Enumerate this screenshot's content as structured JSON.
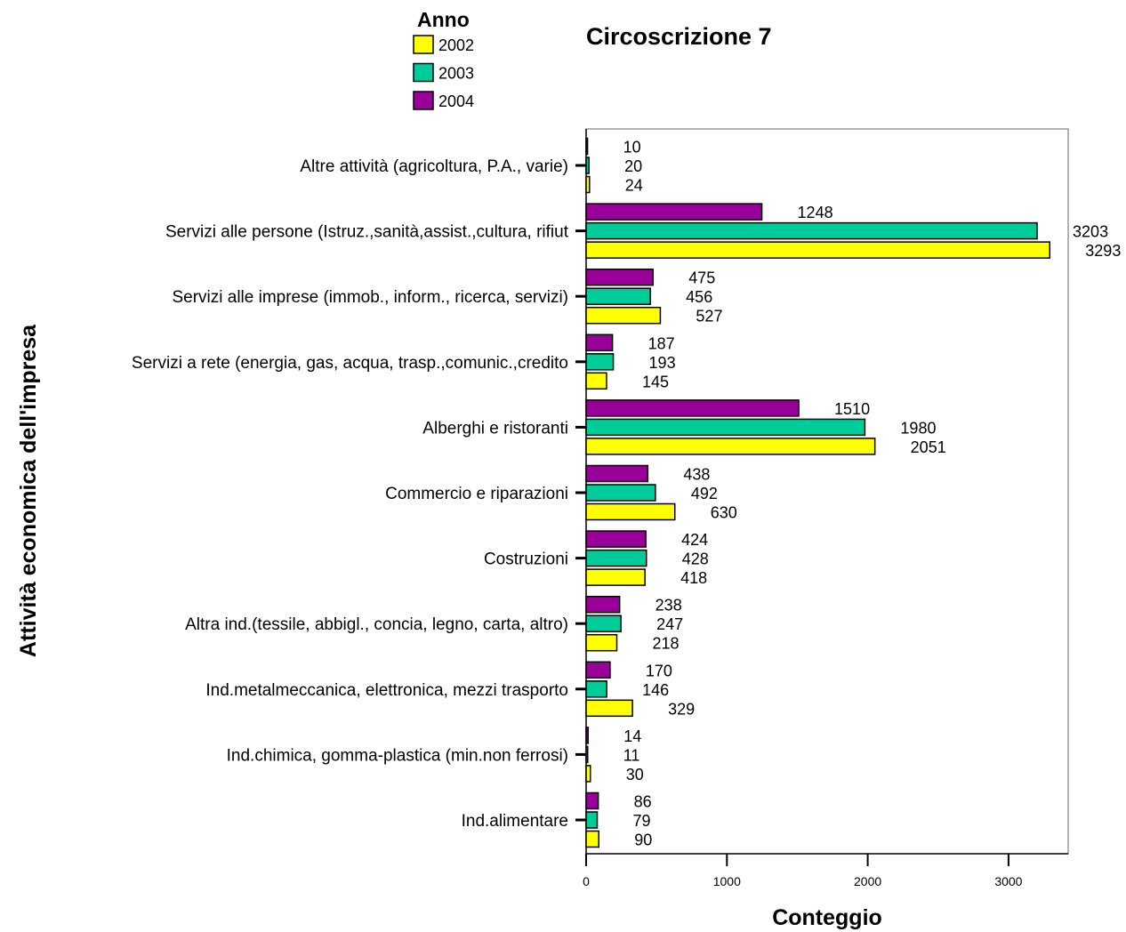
{
  "chart_data": {
    "type": "bar",
    "orientation": "horizontal",
    "title": "Circoscrizione 7",
    "xlabel": "Conteggio",
    "ylabel": "Attività economica dell'impresa",
    "xlim": [
      0,
      3400
    ],
    "xticks": [
      0,
      1000,
      2000,
      3000
    ],
    "legend": {
      "title": "Anno",
      "position": "top-left"
    },
    "categories": [
      "Altre attività  (agricoltura, P.A., varie)",
      "Servizi alle persone (Istruz.,sanità,assist.,cultura, rifiut",
      "Servizi alle imprese (immob., inform., ricerca, servizi)",
      "Servizi a rete (energia, gas, acqua, trasp.,comunic.,credito",
      "Alberghi e ristoranti",
      "Commercio e riparazioni",
      "Costruzioni",
      "Altra ind.(tessile, abbigl., concia, legno, carta, altro)",
      "Ind.metalmeccanica, elettronica, mezzi trasporto",
      "Ind.chimica, gomma-plastica (min.non ferrosi)",
      "Ind.alimentare"
    ],
    "series": [
      {
        "name": "2004",
        "color": "#990099",
        "values": [
          10,
          1248,
          475,
          187,
          1510,
          438,
          424,
          238,
          170,
          14,
          86
        ]
      },
      {
        "name": "2003",
        "color": "#00cc99",
        "values": [
          20,
          3203,
          456,
          193,
          1980,
          492,
          428,
          247,
          146,
          11,
          79
        ]
      },
      {
        "name": "2002",
        "color": "#ffff00",
        "values": [
          24,
          3293,
          527,
          145,
          2051,
          630,
          418,
          218,
          329,
          30,
          90
        ]
      }
    ],
    "legend_order": [
      "2002",
      "2003",
      "2004"
    ],
    "grid": false
  }
}
